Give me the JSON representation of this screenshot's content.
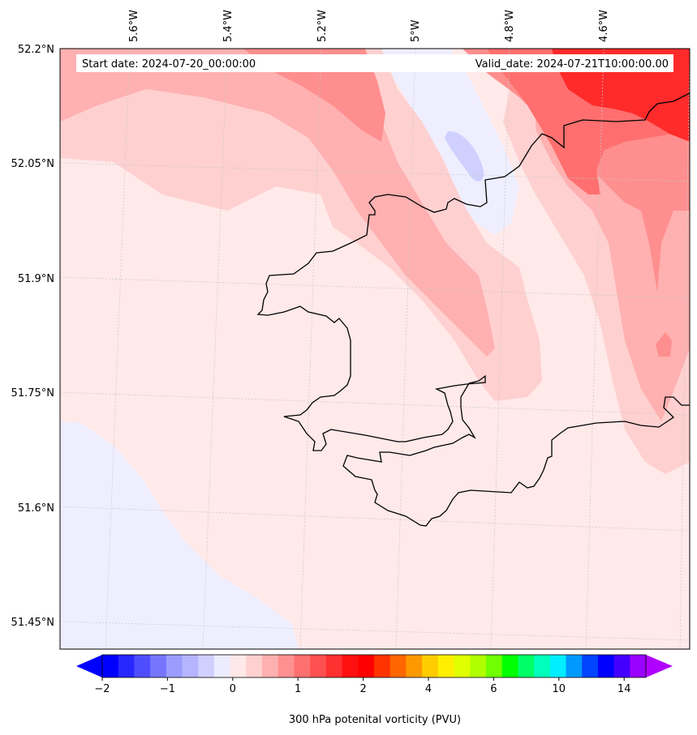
{
  "header": {
    "start_date": "Start date: 2024-07-20_00:00:00",
    "valid_date": "Valid_date: 2024-07-21T10:00:00.00"
  },
  "axes": {
    "longitude_labels": [
      "5.6°W",
      "5.4°W",
      "5.2°W",
      "5°W",
      "4.8°W",
      "4.6°W"
    ],
    "latitude_labels": [
      "52.2°N",
      "52.05°N",
      "51.9°N",
      "51.75°N",
      "51.6°N",
      "51.45°N"
    ]
  },
  "colorbar": {
    "label": "300 hPa potenital vorticity (PVU)",
    "tick_labels": [
      "−2",
      "−1",
      "0",
      "1",
      "2",
      "4",
      "6",
      "10",
      "14"
    ],
    "under_color": "#0000ff",
    "over_color": "#b000ff",
    "colors": [
      "#0000ff",
      "#2727ff",
      "#4e4eff",
      "#7575ff",
      "#9c9cff",
      "#b4b4ff",
      "#d0d0ff",
      "#ececff",
      "#ffe8e8",
      "#ffd0d0",
      "#ffb0b0",
      "#ff9090",
      "#ff7070",
      "#ff5050",
      "#ff3030",
      "#ff1010",
      "#ff0000",
      "#ff3300",
      "#ff6600",
      "#ff9900",
      "#ffcc00",
      "#ffee00",
      "#e0ff00",
      "#b0ff00",
      "#70ff00",
      "#00ff00",
      "#00ff66",
      "#00ffbb",
      "#00eeff",
      "#0099ff",
      "#0044ff",
      "#0000ff",
      "#4400ff",
      "#9900ff"
    ]
  },
  "fill_colors": {
    "pv_0_0p25": "#ffe9e9",
    "pv_0p25_0p5": "#ffd0d0",
    "pv_0p5_0p75": "#ffb0b0",
    "pv_0p75_1": "#ff8e8e",
    "pv_1_1p25": "#ff6f6f",
    "pv_1p5_plus": "#ff2a2a",
    "pv_m0p25_0": "#eeeeff",
    "pv_m0p5_m0p25": "#d0d0ff",
    "coastline": "#000000"
  }
}
